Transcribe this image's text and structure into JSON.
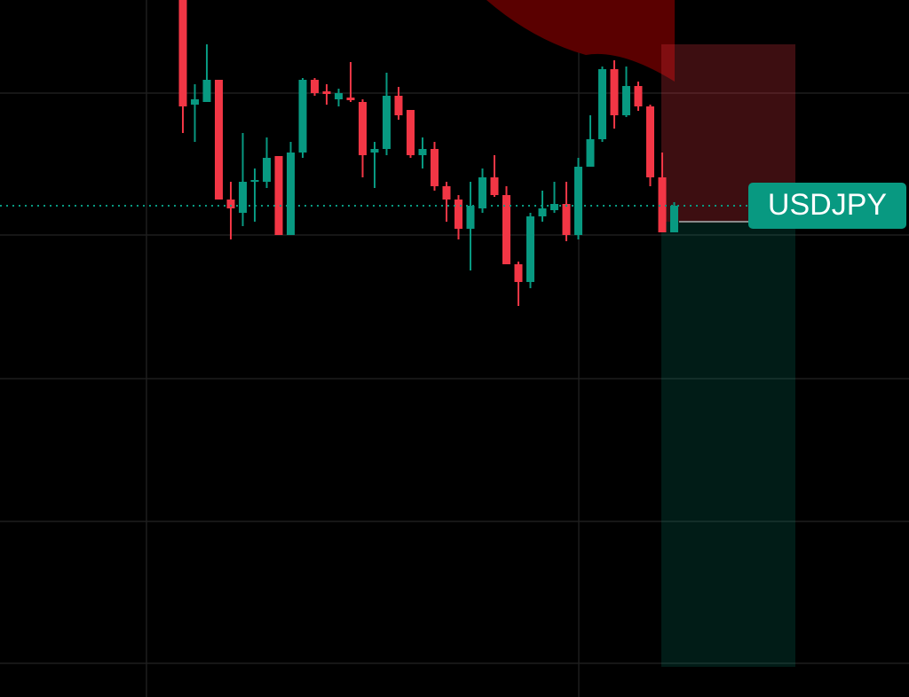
{
  "chart_data": {
    "type": "candlestick",
    "symbol": "USDJPY",
    "ylim": [
      0,
      786
    ],
    "up_color": "#089981",
    "down_color": "#f23645",
    "open": [
      786,
      668,
      671,
      696,
      561,
      546,
      581,
      581,
      610,
      521,
      614,
      696,
      683,
      674,
      676,
      671,
      614,
      618,
      678,
      662,
      611,
      618,
      576,
      561,
      528,
      551,
      586,
      566,
      488,
      468,
      542,
      549,
      556,
      521,
      598,
      629,
      708,
      656,
      689,
      666,
      586,
      524
    ],
    "high": [
      786,
      691,
      736,
      696,
      581,
      636,
      596,
      631,
      610,
      626,
      698,
      698,
      691,
      686,
      716,
      674,
      626,
      704,
      688,
      662,
      631,
      626,
      581,
      566,
      581,
      596,
      611,
      576,
      491,
      546,
      571,
      581,
      581,
      608,
      656,
      711,
      718,
      711,
      694,
      668,
      614,
      558
    ],
    "low": [
      636,
      626,
      671,
      561,
      516,
      531,
      536,
      574,
      521,
      521,
      608,
      678,
      668,
      666,
      671,
      586,
      574,
      611,
      651,
      608,
      596,
      571,
      536,
      516,
      481,
      546,
      564,
      488,
      441,
      461,
      536,
      546,
      514,
      516,
      598,
      626,
      641,
      654,
      661,
      576,
      524,
      524
    ],
    "close": [
      666,
      674,
      696,
      561,
      551,
      581,
      583,
      608,
      521,
      614,
      696,
      681,
      680,
      681,
      673,
      611,
      618,
      678,
      656,
      611,
      618,
      576,
      561,
      528,
      554,
      586,
      566,
      488,
      468,
      542,
      551,
      556,
      521,
      598,
      629,
      708,
      656,
      689,
      666,
      586,
      524,
      554
    ],
    "position": {
      "stop": 736,
      "entry": 536,
      "target": 34
    }
  }
}
